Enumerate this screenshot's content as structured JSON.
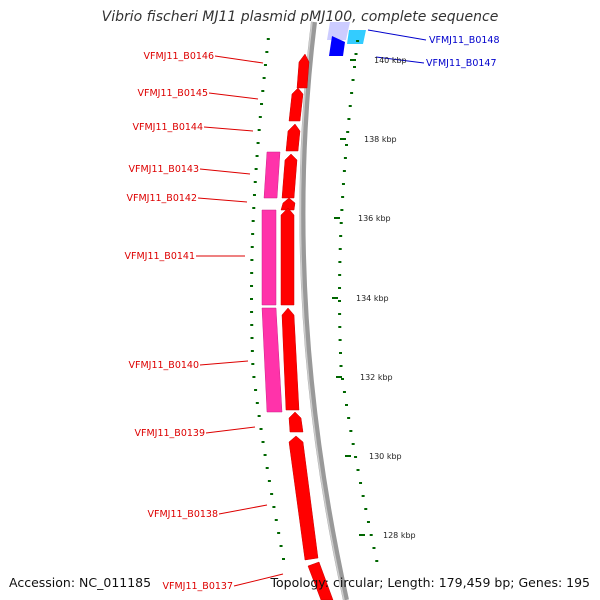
{
  "header": {
    "title": "Vibrio fischeri MJ11 plasmid pMJ100, complete sequence"
  },
  "footer": {
    "accession_label": "Accession:",
    "accession": "NC_011185",
    "summary": "Topology: circular; Length: 179,459 bp; Genes: 195"
  },
  "colors": {
    "backbone": "#888888",
    "forward_cds": "#ff0000",
    "feature_pink": "#ff33aa",
    "reverse_blue": "#0000ff",
    "light_blue": "#33ccff",
    "lavender": "#aaaaff",
    "tick_green": "#006600",
    "label_red": "#dd0000",
    "label_blue": "#0000cc"
  },
  "genes_left": [
    {
      "label": "VFMJ11_B0146"
    },
    {
      "label": "VFMJ11_B0145"
    },
    {
      "label": "VFMJ11_B0144"
    },
    {
      "label": "VFMJ11_B0143"
    },
    {
      "label": "VFMJ11_B0142"
    },
    {
      "label": "VFMJ11_B0141"
    },
    {
      "label": "VFMJ11_B0140"
    },
    {
      "label": "VFMJ11_B0139"
    },
    {
      "label": "VFMJ11_B0138"
    },
    {
      "label": "VFMJ11_B0137"
    }
  ],
  "genes_right": [
    {
      "label": "VFMJ11_B0148"
    },
    {
      "label": "VFMJ11_B0147"
    }
  ],
  "scale_ticks": [
    {
      "label": "140 kbp"
    },
    {
      "label": "138 kbp"
    },
    {
      "label": "136 kbp"
    },
    {
      "label": "134 kbp"
    },
    {
      "label": "132 kbp"
    },
    {
      "label": "130 kbp"
    },
    {
      "label": "128 kbp"
    }
  ]
}
